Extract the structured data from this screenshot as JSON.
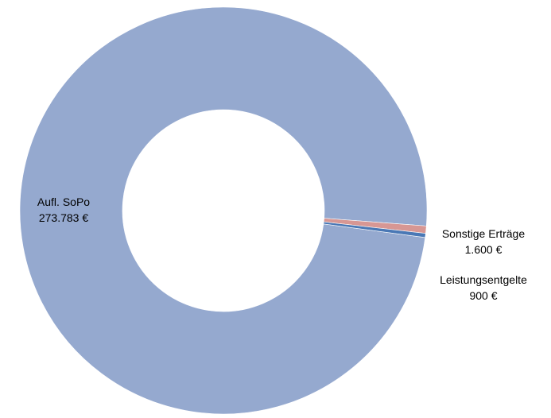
{
  "chart_data": {
    "type": "pie",
    "variant": "donut",
    "slices": [
      {
        "label": "Aufl. SoPo",
        "value": 273783,
        "value_label": "273.783 €",
        "color": "#95A9CF"
      },
      {
        "label": "Sonstige Erträge",
        "value": 1600,
        "value_label": "1.600 €",
        "color": "#D79794"
      },
      {
        "label": "Leistungsentgelte",
        "value": 900,
        "value_label": "900 €",
        "color": "#4A78B5"
      }
    ],
    "legend": "none",
    "data_labels": "category and value"
  }
}
